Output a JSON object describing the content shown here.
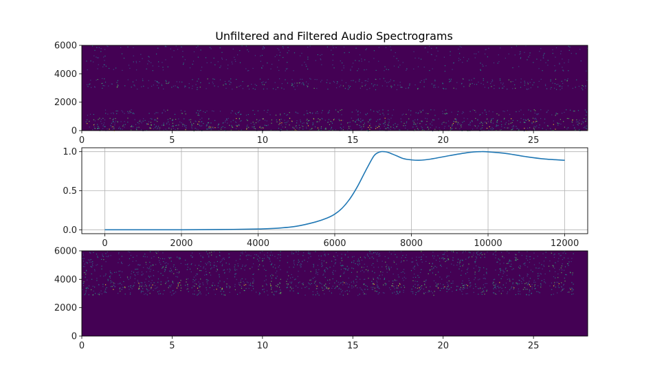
{
  "figure": {
    "title": "Unfiltered and Filtered Audio Spectrograms"
  },
  "colors": {
    "spectrogram_background": "#440154",
    "spectrogram_low": "#3b528b",
    "spectrogram_mid": "#21918c",
    "spectrogram_high": "#5ec962",
    "spectrogram_peak": "#fde725",
    "line": "#1f77b4",
    "grid": "#b0b0b0",
    "axes": "#000000"
  },
  "chart_data": [
    {
      "name": "unfiltered-spectrogram",
      "type": "heatmap",
      "title": "Unfiltered and Filtered Audio Spectrograms",
      "xlim": [
        0,
        28
      ],
      "ylim": [
        0,
        6000
      ],
      "xticks": [
        0,
        5,
        10,
        15,
        20,
        25
      ],
      "xtick_labels": [
        "0",
        "5",
        "10",
        "15",
        "20",
        "25"
      ],
      "yticks": [
        0,
        2000,
        4000,
        6000
      ],
      "ytick_labels": [
        "0",
        "2000",
        "4000",
        "6000"
      ],
      "colormap": "viridis",
      "sound_segments": [
        [
          0.2,
          2.4
        ],
        [
          2.5,
          4.3
        ],
        [
          4.4,
          5.8
        ],
        [
          5.9,
          7.4
        ],
        [
          7.5,
          8.9
        ],
        [
          9.0,
          10.3
        ],
        [
          10.4,
          11.5
        ],
        [
          11.6,
          13.3
        ],
        [
          13.4,
          15.0
        ],
        [
          15.1,
          16.5
        ],
        [
          16.6,
          18.2
        ],
        [
          18.3,
          19.8
        ],
        [
          19.9,
          21.2
        ],
        [
          21.3,
          22.8
        ],
        [
          22.9,
          24.3
        ],
        [
          24.4,
          25.8
        ],
        [
          25.9,
          28.0
        ]
      ],
      "energy_bands_hz": [
        {
          "low": 0,
          "high": 900,
          "intensity": 0.55
        },
        {
          "low": 1100,
          "high": 1500,
          "intensity": 0.35
        },
        {
          "low": 2900,
          "high": 3700,
          "intensity": 0.3
        },
        {
          "low": 4200,
          "high": 6000,
          "intensity": 0.12
        }
      ]
    },
    {
      "name": "filter-response",
      "type": "line",
      "xlim": [
        -600,
        12600
      ],
      "ylim": [
        -0.05,
        1.05
      ],
      "xticks": [
        0,
        2000,
        4000,
        6000,
        8000,
        10000,
        12000
      ],
      "xtick_labels": [
        "0",
        "2000",
        "4000",
        "6000",
        "8000",
        "10000",
        "12000"
      ],
      "yticks": [
        0.0,
        0.5,
        1.0
      ],
      "ytick_labels": [
        "0.0",
        "0.5",
        "1.0"
      ],
      "grid": true,
      "x": [
        0,
        1000,
        2000,
        3000,
        4000,
        4500,
        5000,
        5500,
        5800,
        6000,
        6200,
        6400,
        6600,
        6800,
        7000,
        7100,
        7200,
        7300,
        7400,
        7600,
        7800,
        8000,
        8200,
        8500,
        9000,
        9500,
        9800,
        10000,
        10500,
        11000,
        11500,
        12000
      ],
      "y": [
        0.0,
        0.0,
        0.0,
        0.003,
        0.01,
        0.02,
        0.045,
        0.1,
        0.15,
        0.2,
        0.28,
        0.4,
        0.56,
        0.75,
        0.93,
        0.98,
        1.0,
        1.0,
        0.99,
        0.95,
        0.91,
        0.895,
        0.89,
        0.905,
        0.95,
        0.99,
        1.0,
        0.998,
        0.975,
        0.935,
        0.905,
        0.89
      ]
    },
    {
      "name": "filtered-spectrogram",
      "type": "heatmap",
      "xlim": [
        0,
        28
      ],
      "ylim": [
        0,
        6000
      ],
      "xticks": [
        0,
        5,
        10,
        15,
        20,
        25
      ],
      "xtick_labels": [
        "0",
        "5",
        "10",
        "15",
        "20",
        "25"
      ],
      "yticks": [
        0,
        2000,
        4000,
        6000
      ],
      "ytick_labels": [
        "0",
        "2000",
        "4000",
        "6000"
      ],
      "colormap": "viridis",
      "sound_segments": [
        [
          0.0,
          2.4
        ],
        [
          2.5,
          5.5
        ],
        [
          5.7,
          8.2
        ],
        [
          8.4,
          11.0
        ],
        [
          11.3,
          14.8
        ],
        [
          14.9,
          18.0
        ],
        [
          18.2,
          20.6
        ],
        [
          20.7,
          22.5
        ],
        [
          22.7,
          25.7
        ],
        [
          25.8,
          27.2
        ]
      ],
      "energy_bands_hz": [
        {
          "low": 2900,
          "high": 3300,
          "intensity": 0.35
        },
        {
          "low": 3300,
          "high": 3800,
          "intensity": 0.55
        },
        {
          "low": 3800,
          "high": 6000,
          "intensity": 0.3
        }
      ],
      "cutoff_hz": 2900
    }
  ]
}
